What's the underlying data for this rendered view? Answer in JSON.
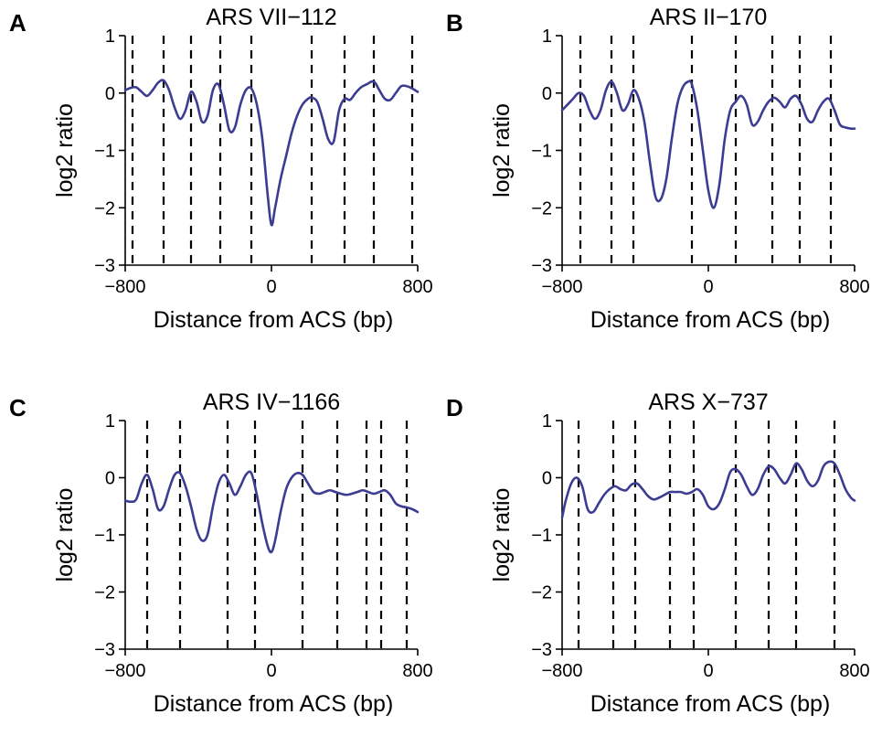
{
  "colors": {
    "series": "#3b3c92",
    "axis": "#000000",
    "background": "#ffffff"
  },
  "chart_data": [
    {
      "panel": "A",
      "type": "line",
      "title": "ARS VII−112",
      "xlabel": "Distance from ACS (bp)",
      "ylabel": "log2 ratio",
      "xlim": [
        -800,
        800
      ],
      "ylim": [
        -3,
        1
      ],
      "xticks": [
        -800,
        0,
        800
      ],
      "xtick_labels": [
        "−800",
        "0",
        "800"
      ],
      "yticks": [
        1,
        0,
        -1,
        -2,
        -3
      ],
      "ytick_labels": [
        "1",
        "0",
        "−1",
        "−2",
        "−3"
      ],
      "grid": false,
      "legend": "none",
      "vlines": [
        -760,
        -590,
        -440,
        -280,
        -110,
        220,
        400,
        560,
        770
      ],
      "x": [
        -800,
        -770,
        -740,
        -710,
        -680,
        -650,
        -620,
        -590,
        -560,
        -530,
        -500,
        -470,
        -440,
        -410,
        -380,
        -350,
        -320,
        -290,
        -260,
        -230,
        -200,
        -170,
        -140,
        -110,
        -80,
        -50,
        -20,
        0,
        20,
        50,
        80,
        110,
        140,
        170,
        200,
        220,
        250,
        280,
        310,
        340,
        370,
        400,
        430,
        460,
        490,
        520,
        560,
        590,
        620,
        650,
        680,
        710,
        740,
        770,
        800
      ],
      "values": [
        0.05,
        0.09,
        0.1,
        0.02,
        -0.05,
        0.05,
        0.18,
        0.22,
        0.05,
        -0.25,
        -0.45,
        -0.3,
        0.02,
        -0.15,
        -0.5,
        -0.4,
        0.05,
        0.15,
        -0.2,
        -0.65,
        -0.6,
        -0.2,
        0.05,
        0.08,
        -0.2,
        -0.8,
        -1.8,
        -2.3,
        -2.0,
        -1.5,
        -1.1,
        -0.7,
        -0.4,
        -0.2,
        -0.1,
        -0.08,
        -0.15,
        -0.45,
        -0.8,
        -0.85,
        -0.3,
        -0.1,
        -0.12,
        0.0,
        0.1,
        0.15,
        0.2,
        0.05,
        -0.1,
        -0.12,
        0.0,
        0.12,
        0.12,
        0.08,
        0.02
      ]
    },
    {
      "panel": "B",
      "type": "line",
      "title": "ARS II−170",
      "xlabel": "Distance from ACS (bp)",
      "ylabel": "log2 ratio",
      "xlim": [
        -800,
        800
      ],
      "ylim": [
        -3,
        1
      ],
      "xticks": [
        -800,
        0,
        800
      ],
      "xtick_labels": [
        "−800",
        "0",
        "800"
      ],
      "yticks": [
        1,
        0,
        -1,
        -2,
        -3
      ],
      "ytick_labels": [
        "1",
        "0",
        "−1",
        "−2",
        "−3"
      ],
      "grid": false,
      "legend": "none",
      "vlines": [
        -700,
        -530,
        -410,
        -90,
        150,
        350,
        500,
        670
      ],
      "x": [
        -800,
        -770,
        -740,
        -710,
        -680,
        -650,
        -620,
        -590,
        -560,
        -530,
        -500,
        -470,
        -440,
        -410,
        -380,
        -350,
        -320,
        -290,
        -260,
        -230,
        -200,
        -170,
        -140,
        -110,
        -90,
        -60,
        -30,
        0,
        30,
        60,
        90,
        120,
        150,
        180,
        210,
        240,
        270,
        300,
        330,
        360,
        390,
        420,
        450,
        480,
        510,
        540,
        570,
        600,
        630,
        660,
        690,
        720,
        750,
        780,
        800
      ],
      "values": [
        -0.3,
        -0.2,
        -0.1,
        0.0,
        -0.05,
        -0.3,
        -0.45,
        -0.3,
        0.05,
        0.2,
        0.0,
        -0.3,
        -0.2,
        0.05,
        -0.1,
        -0.5,
        -1.2,
        -1.8,
        -1.85,
        -1.5,
        -0.8,
        -0.2,
        0.1,
        0.2,
        0.15,
        -0.3,
        -1.0,
        -1.7,
        -2.0,
        -1.6,
        -0.8,
        -0.3,
        -0.15,
        -0.05,
        -0.2,
        -0.55,
        -0.5,
        -0.3,
        -0.15,
        -0.08,
        -0.15,
        -0.25,
        -0.1,
        -0.05,
        -0.2,
        -0.45,
        -0.5,
        -0.3,
        -0.15,
        -0.1,
        -0.3,
        -0.55,
        -0.6,
        -0.62,
        -0.62
      ]
    },
    {
      "panel": "C",
      "type": "line",
      "title": "ARS IV−1166",
      "xlabel": "Distance from ACS (bp)",
      "ylabel": "log2 ratio",
      "xlim": [
        -800,
        800
      ],
      "ylim": [
        -3,
        1
      ],
      "xticks": [
        -800,
        0,
        800
      ],
      "xtick_labels": [
        "−800",
        "0",
        "800"
      ],
      "yticks": [
        1,
        0,
        -1,
        -2,
        -3
      ],
      "ytick_labels": [
        "1",
        "0",
        "−1",
        "−2",
        "−3"
      ],
      "grid": false,
      "legend": "none",
      "vlines": [
        -680,
        -500,
        -240,
        -90,
        170,
        360,
        520,
        600,
        740
      ],
      "x": [
        -800,
        -770,
        -740,
        -710,
        -680,
        -650,
        -620,
        -590,
        -560,
        -530,
        -500,
        -470,
        -440,
        -410,
        -380,
        -350,
        -320,
        -290,
        -260,
        -230,
        -200,
        -170,
        -140,
        -110,
        -80,
        -50,
        -20,
        0,
        20,
        50,
        80,
        110,
        140,
        170,
        200,
        230,
        260,
        290,
        320,
        350,
        380,
        410,
        440,
        470,
        500,
        530,
        560,
        590,
        620,
        650,
        680,
        710,
        740,
        770,
        800
      ],
      "values": [
        -0.4,
        -0.42,
        -0.38,
        -0.1,
        0.05,
        -0.2,
        -0.55,
        -0.5,
        -0.2,
        0.05,
        0.08,
        -0.15,
        -0.5,
        -0.9,
        -1.1,
        -1.0,
        -0.5,
        -0.1,
        0.05,
        -0.1,
        -0.3,
        -0.15,
        0.05,
        0.08,
        -0.3,
        -0.8,
        -1.2,
        -1.3,
        -1.1,
        -0.6,
        -0.2,
        0.0,
        0.08,
        0.05,
        -0.1,
        -0.25,
        -0.28,
        -0.25,
        -0.22,
        -0.25,
        -0.28,
        -0.3,
        -0.28,
        -0.25,
        -0.22,
        -0.25,
        -0.28,
        -0.25,
        -0.22,
        -0.3,
        -0.45,
        -0.5,
        -0.52,
        -0.55,
        -0.6
      ]
    },
    {
      "panel": "D",
      "type": "line",
      "title": "ARS X−737",
      "xlabel": "Distance from ACS (bp)",
      "ylabel": "log2 ratio",
      "xlim": [
        -800,
        800
      ],
      "ylim": [
        -3,
        1
      ],
      "xticks": [
        -800,
        0,
        800
      ],
      "xtick_labels": [
        "−800",
        "0",
        "800"
      ],
      "yticks": [
        1,
        0,
        -1,
        -2,
        -3
      ],
      "ytick_labels": [
        "1",
        "0",
        "−1",
        "−2",
        "−3"
      ],
      "grid": false,
      "legend": "none",
      "vlines": [
        -710,
        -520,
        -400,
        -210,
        -80,
        150,
        330,
        480,
        690
      ],
      "x": [
        -800,
        -780,
        -750,
        -720,
        -690,
        -660,
        -630,
        -600,
        -570,
        -540,
        -510,
        -480,
        -450,
        -420,
        -390,
        -360,
        -330,
        -300,
        -270,
        -240,
        -210,
        -180,
        -150,
        -120,
        -90,
        -60,
        -30,
        0,
        30,
        60,
        90,
        120,
        150,
        180,
        210,
        240,
        270,
        300,
        330,
        360,
        390,
        420,
        450,
        480,
        510,
        540,
        570,
        600,
        630,
        660,
        690,
        720,
        750,
        780,
        800
      ],
      "values": [
        -0.7,
        -0.4,
        -0.1,
        0.0,
        -0.15,
        -0.55,
        -0.6,
        -0.45,
        -0.3,
        -0.2,
        -0.15,
        -0.2,
        -0.22,
        -0.12,
        -0.1,
        -0.2,
        -0.32,
        -0.38,
        -0.35,
        -0.3,
        -0.25,
        -0.25,
        -0.25,
        -0.28,
        -0.25,
        -0.2,
        -0.3,
        -0.5,
        -0.55,
        -0.45,
        -0.2,
        0.1,
        0.15,
        0.05,
        -0.15,
        -0.3,
        -0.2,
        0.05,
        0.2,
        0.15,
        0.0,
        -0.1,
        0.05,
        0.25,
        0.15,
        -0.05,
        -0.15,
        -0.05,
        0.2,
        0.28,
        0.25,
        0.05,
        -0.2,
        -0.35,
        -0.4
      ]
    }
  ]
}
